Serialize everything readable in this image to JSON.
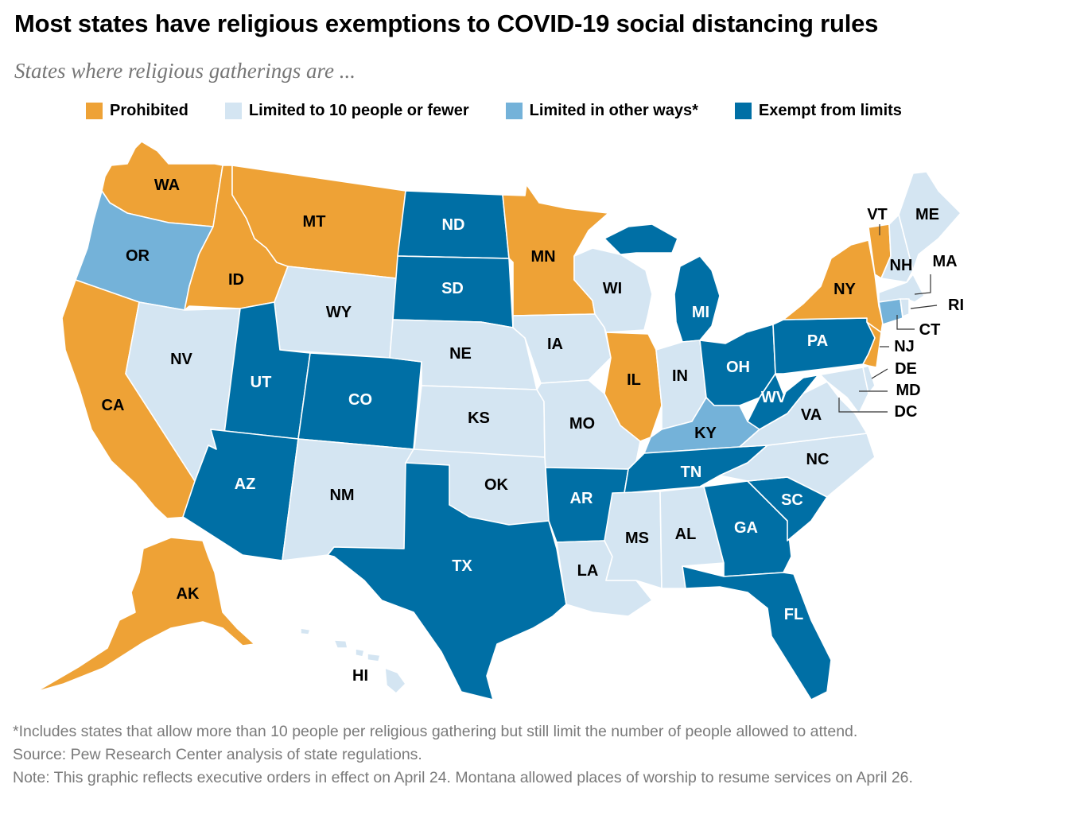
{
  "title": "Most states have religious exemptions to COVID-19 social distancing rules",
  "subtitle": "States where religious gatherings are ...",
  "legend": [
    {
      "key": "prohibited",
      "label": "Prohibited"
    },
    {
      "key": "limited10",
      "label": "Limited to 10 people or fewer"
    },
    {
      "key": "limitedOther",
      "label": "Limited in other ways*"
    },
    {
      "key": "exempt",
      "label": "Exempt from limits"
    }
  ],
  "colors": {
    "prohibited": "#eea236",
    "limited10": "#d4e5f2",
    "limitedOther": "#74b2d9",
    "exempt": "#006fa5",
    "water": "#ffffff"
  },
  "states": {
    "WA": "prohibited",
    "OR": "limitedOther",
    "CA": "prohibited",
    "ID": "prohibited",
    "NV": "limited10",
    "MT": "prohibited",
    "WY": "limited10",
    "UT": "exempt",
    "AZ": "exempt",
    "CO": "exempt",
    "NM": "limited10",
    "ND": "exempt",
    "SD": "exempt",
    "NE": "limited10",
    "KS": "limited10",
    "OK": "limited10",
    "TX": "exempt",
    "MN": "prohibited",
    "IA": "limited10",
    "MO": "limited10",
    "AR": "exempt",
    "LA": "limited10",
    "WI": "limited10",
    "IL": "prohibited",
    "MI": "exempt",
    "IN": "limited10",
    "OH": "exempt",
    "KY": "limitedOther",
    "TN": "exempt",
    "MS": "limited10",
    "AL": "limited10",
    "GA": "exempt",
    "FL": "exempt",
    "SC": "exempt",
    "NC": "limited10",
    "VA": "limited10",
    "WV": "exempt",
    "PA": "exempt",
    "NY": "prohibited",
    "VT": "prohibited",
    "NH": "limited10",
    "ME": "limited10",
    "MA": "limited10",
    "RI": "limited10",
    "CT": "limitedOther",
    "NJ": "prohibited",
    "DE": "limited10",
    "MD": "limited10",
    "DC": "limited10",
    "AK": "prohibited",
    "HI": "limited10"
  },
  "notes": [
    "*Includes states that allow more than 10 people per religious gathering but still limit the number of people allowed to attend.",
    "Source: Pew Research Center analysis of state regulations.",
    "Note: This graphic reflects executive orders in effect on April 24. Montana allowed places of worship to resume services on April 26."
  ]
}
